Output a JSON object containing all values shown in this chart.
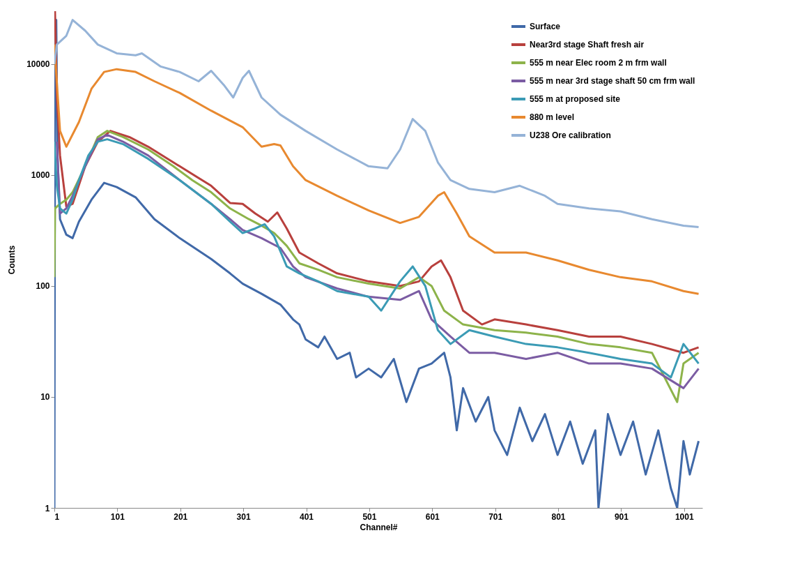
{
  "chart_data": {
    "type": "line",
    "xlabel": "Channel#",
    "ylabel": "Counts",
    "log": "y",
    "legend": "top right",
    "xlim": [
      1,
      1030
    ],
    "ylim": [
      1,
      30000
    ],
    "xticks": [
      1,
      101,
      201,
      301,
      401,
      501,
      601,
      701,
      801,
      901,
      1001
    ],
    "yticks": [
      1,
      10,
      100,
      1000,
      10000
    ],
    "series": [
      {
        "name": "Surface",
        "color": "#4069a8",
        "x": [
          1,
          2,
          4,
          6,
          10,
          20,
          30,
          40,
          60,
          80,
          100,
          130,
          160,
          200,
          250,
          280,
          300,
          330,
          360,
          380,
          390,
          400,
          420,
          430,
          450,
          470,
          480,
          500,
          520,
          540,
          560,
          580,
          600,
          620,
          630,
          640,
          650,
          670,
          690,
          700,
          720,
          740,
          760,
          780,
          800,
          820,
          840,
          860,
          865,
          880,
          900,
          920,
          940,
          960,
          980,
          990,
          1000,
          1010,
          1024
        ],
        "values": [
          1,
          3000,
          25000,
          1500,
          400,
          290,
          270,
          380,
          600,
          850,
          780,
          630,
          400,
          270,
          175,
          130,
          105,
          85,
          68,
          50,
          45,
          33,
          28,
          35,
          22,
          25,
          15,
          18,
          15,
          22,
          9,
          18,
          20,
          25,
          15,
          5,
          12,
          6,
          10,
          5,
          3,
          8,
          4,
          7,
          3,
          6,
          2.5,
          5,
          1,
          7,
          3,
          6,
          2,
          5,
          1.5,
          1,
          4,
          2,
          4
        ]
      },
      {
        "name": "Near3rd stage Shaft fresh air",
        "color": "#b8403d",
        "x": [
          2,
          5,
          10,
          20,
          30,
          50,
          70,
          90,
          120,
          150,
          200,
          250,
          280,
          300,
          320,
          340,
          355,
          370,
          390,
          420,
          450,
          500,
          550,
          580,
          600,
          615,
          630,
          650,
          680,
          700,
          750,
          800,
          850,
          900,
          950,
          1000,
          1024
        ],
        "values": [
          30000,
          5000,
          1500,
          520,
          550,
          1200,
          2000,
          2500,
          2200,
          1800,
          1200,
          800,
          560,
          550,
          450,
          380,
          460,
          330,
          200,
          160,
          130,
          110,
          100,
          110,
          150,
          170,
          120,
          60,
          45,
          50,
          45,
          40,
          35,
          35,
          30,
          25,
          28
        ]
      },
      {
        "name": "555 m near Elec room 2 m frm wall",
        "color": "#8db34a",
        "x": [
          1,
          2,
          10,
          20,
          30,
          50,
          70,
          85,
          110,
          150,
          190,
          220,
          250,
          280,
          310,
          330,
          350,
          370,
          390,
          420,
          450,
          500,
          550,
          580,
          600,
          620,
          650,
          700,
          750,
          800,
          850,
          900,
          950,
          990,
          1000,
          1024
        ],
        "values": [
          120,
          500,
          550,
          600,
          700,
          1200,
          2200,
          2500,
          2200,
          1700,
          1200,
          900,
          700,
          500,
          400,
          350,
          300,
          230,
          160,
          140,
          120,
          105,
          95,
          120,
          100,
          60,
          45,
          40,
          38,
          35,
          30,
          28,
          25,
          9,
          20,
          25
        ]
      },
      {
        "name": "555 m near 3rd stage shaft 50 cm frm wall",
        "color": "#7b5ca3",
        "x": [
          5,
          10,
          20,
          30,
          50,
          70,
          85,
          110,
          150,
          200,
          250,
          280,
          300,
          330,
          360,
          380,
          400,
          450,
          500,
          550,
          580,
          600,
          630,
          660,
          700,
          750,
          800,
          850,
          900,
          950,
          1000,
          1024
        ],
        "values": [
          2000,
          450,
          500,
          650,
          1200,
          2100,
          2300,
          2000,
          1500,
          900,
          550,
          400,
          320,
          270,
          220,
          150,
          120,
          95,
          80,
          75,
          90,
          50,
          35,
          25,
          25,
          22,
          25,
          20,
          20,
          18,
          12,
          18
        ]
      },
      {
        "name": "555 m at proposed site",
        "color": "#3b9bb5",
        "x": [
          1,
          5,
          10,
          20,
          30,
          40,
          55,
          70,
          85,
          110,
          150,
          200,
          250,
          280,
          300,
          320,
          335,
          350,
          370,
          390,
          420,
          450,
          500,
          520,
          550,
          570,
          590,
          610,
          630,
          660,
          700,
          750,
          800,
          850,
          900,
          950,
          980,
          1000,
          1024
        ],
        "values": [
          2000,
          800,
          500,
          450,
          600,
          900,
          1500,
          2000,
          2100,
          1900,
          1400,
          900,
          550,
          380,
          300,
          330,
          360,
          280,
          150,
          130,
          110,
          90,
          80,
          60,
          110,
          150,
          100,
          40,
          30,
          40,
          35,
          30,
          28,
          25,
          22,
          20,
          15,
          30,
          20
        ]
      },
      {
        "name": "880 m level",
        "color": "#e8892f",
        "x": [
          1,
          10,
          20,
          40,
          60,
          80,
          100,
          130,
          160,
          200,
          250,
          300,
          330,
          350,
          360,
          380,
          400,
          450,
          500,
          550,
          580,
          610,
          620,
          640,
          660,
          700,
          750,
          800,
          850,
          900,
          950,
          1000,
          1024
        ],
        "values": [
          15000,
          2500,
          1800,
          3000,
          6000,
          8500,
          9000,
          8500,
          7000,
          5500,
          3800,
          2700,
          1800,
          1900,
          1850,
          1200,
          900,
          650,
          480,
          370,
          420,
          650,
          700,
          450,
          280,
          200,
          200,
          170,
          140,
          120,
          110,
          90,
          85
        ]
      },
      {
        "name": "U238 Ore calibration",
        "color": "#95b3d7",
        "x": [
          1,
          5,
          20,
          30,
          50,
          70,
          100,
          130,
          140,
          170,
          200,
          230,
          250,
          270,
          285,
          300,
          310,
          330,
          360,
          400,
          450,
          500,
          530,
          550,
          570,
          590,
          610,
          630,
          660,
          700,
          740,
          780,
          800,
          850,
          900,
          950,
          1000,
          1024
        ],
        "values": [
          10000,
          15000,
          18000,
          25000,
          20000,
          15000,
          12500,
          12000,
          12500,
          9500,
          8500,
          7000,
          8700,
          6500,
          5000,
          7500,
          8700,
          5000,
          3500,
          2500,
          1700,
          1200,
          1150,
          1700,
          3200,
          2500,
          1300,
          900,
          750,
          700,
          800,
          650,
          550,
          500,
          470,
          400,
          350,
          340
        ]
      }
    ]
  }
}
